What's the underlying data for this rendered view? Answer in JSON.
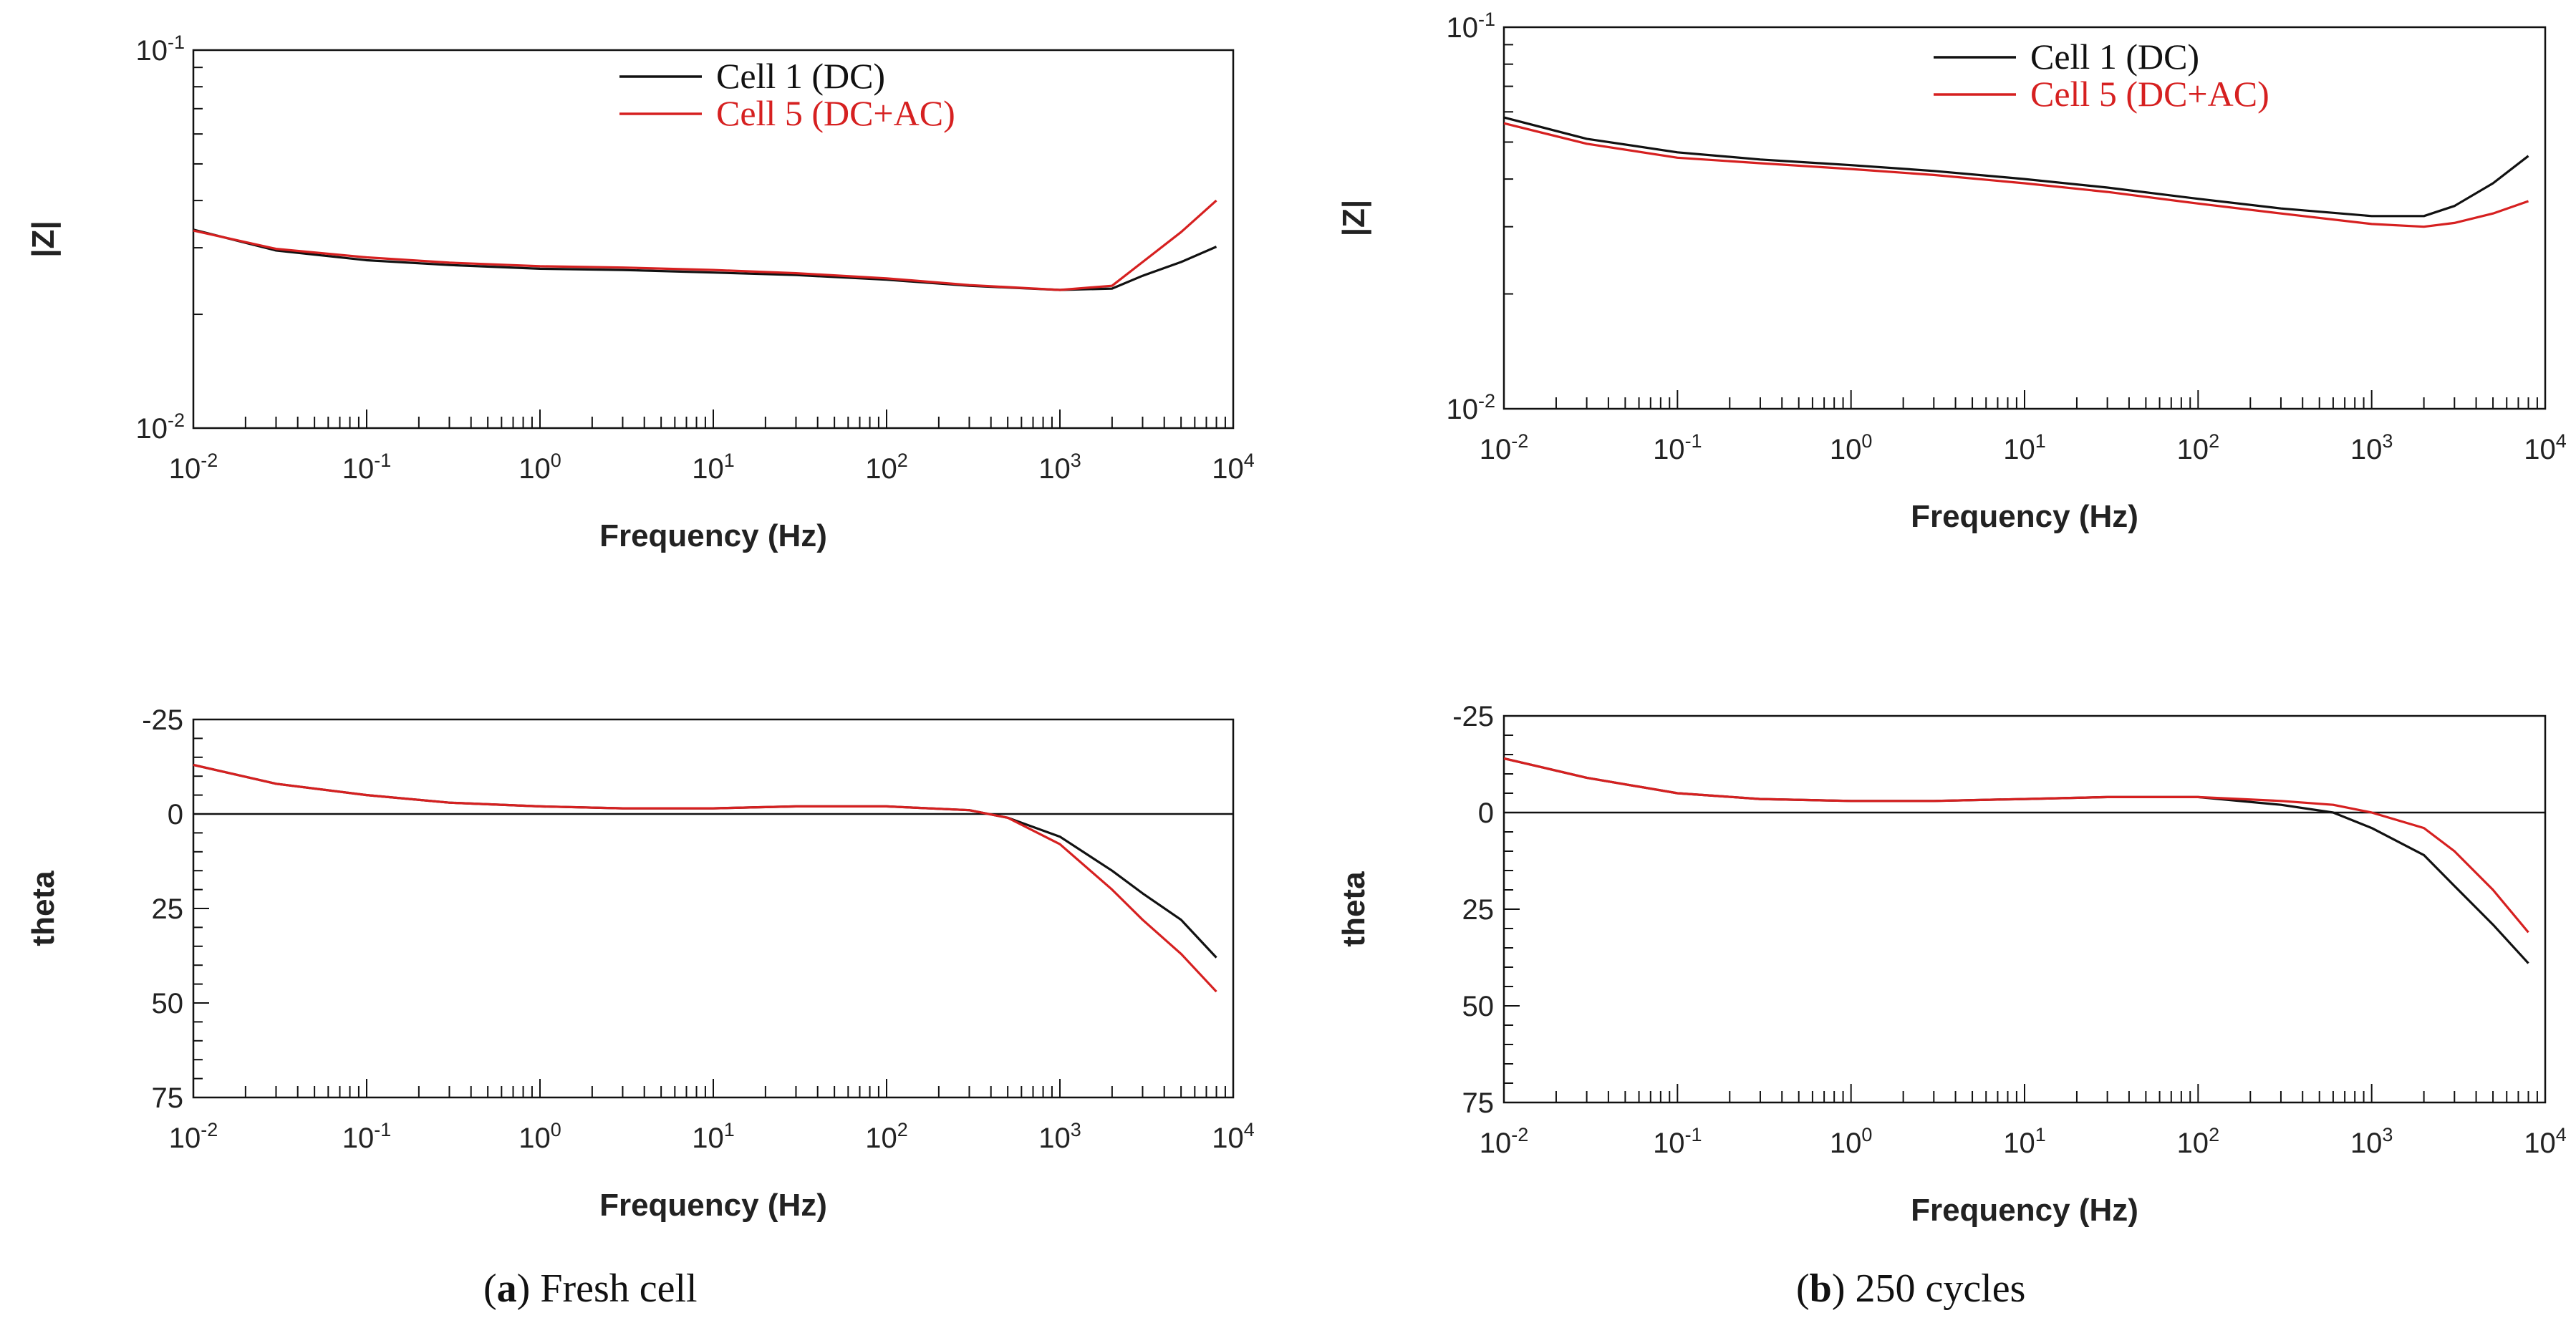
{
  "captions": [
    {
      "letter": "a",
      "text": " Fresh cell"
    },
    {
      "letter": "b",
      "text": " 250 cycles"
    }
  ],
  "colors": {
    "dc": "#111111",
    "dcac": "#d62020",
    "axis": "#111111"
  },
  "chart_data": [
    {
      "id": "a-mag",
      "type": "line",
      "xscale": "log",
      "yscale": "log",
      "xlabel": "Frequency (Hz)",
      "ylabel": "|Z|",
      "xlim": [
        0.01,
        10000
      ],
      "ylim": [
        0.01,
        0.1
      ],
      "xticks": [
        {
          "base": "10",
          "exp": "-2"
        },
        {
          "base": "10",
          "exp": "-1"
        },
        {
          "base": "10",
          "exp": "0"
        },
        {
          "base": "10",
          "exp": "1"
        },
        {
          "base": "10",
          "exp": "2"
        },
        {
          "base": "10",
          "exp": "3"
        },
        {
          "base": "10",
          "exp": "4"
        }
      ],
      "yticks": [
        {
          "base": "10",
          "exp": "-2",
          "value": 0.01
        },
        {
          "base": "10",
          "exp": "-1",
          "value": 0.1
        }
      ],
      "legend": {
        "position": "top-center",
        "entries": [
          "Cell 1 (DC)",
          "Cell 5 (DC+AC)"
        ]
      },
      "x": [
        0.01,
        0.03,
        0.1,
        0.3,
        1,
        3,
        10,
        30,
        100,
        300,
        1000,
        2000,
        3000,
        5000,
        8000
      ],
      "series": [
        {
          "name": "Cell 1 (DC)",
          "values": [
            0.0335,
            0.0295,
            0.0278,
            0.027,
            0.0264,
            0.0262,
            0.0258,
            0.0254,
            0.0247,
            0.0238,
            0.0232,
            0.0234,
            0.0253,
            0.0275,
            0.0302
          ]
        },
        {
          "name": "Cell 5 (DC+AC)",
          "values": [
            0.0333,
            0.0298,
            0.0283,
            0.0274,
            0.0268,
            0.0266,
            0.0262,
            0.0257,
            0.0249,
            0.0239,
            0.0232,
            0.0238,
            0.0275,
            0.033,
            0.04
          ]
        }
      ]
    },
    {
      "id": "a-phase",
      "type": "line",
      "xscale": "log",
      "yscale": "linear-inverted",
      "xlabel": "Frequency (Hz)",
      "ylabel": "theta",
      "xlim": [
        0.01,
        10000
      ],
      "ylim": [
        -25,
        75
      ],
      "xticks": [
        {
          "base": "10",
          "exp": "-2"
        },
        {
          "base": "10",
          "exp": "-1"
        },
        {
          "base": "10",
          "exp": "0"
        },
        {
          "base": "10",
          "exp": "1"
        },
        {
          "base": "10",
          "exp": "2"
        },
        {
          "base": "10",
          "exp": "3"
        },
        {
          "base": "10",
          "exp": "4"
        }
      ],
      "yticks": [
        {
          "label": "-25",
          "value": -25
        },
        {
          "label": "0",
          "value": 0
        },
        {
          "label": "25",
          "value": 25
        },
        {
          "label": "50",
          "value": 50
        },
        {
          "label": "75",
          "value": 75
        }
      ],
      "x": [
        0.01,
        0.03,
        0.1,
        0.3,
        1,
        3,
        10,
        30,
        100,
        300,
        500,
        1000,
        2000,
        3000,
        5000,
        8000
      ],
      "series": [
        {
          "name": "Cell 1 (DC)",
          "values": [
            -13,
            -8,
            -5,
            -3,
            -2,
            -1.5,
            -1.5,
            -2,
            -2,
            -1,
            1,
            6,
            15,
            21,
            28,
            38
          ]
        },
        {
          "name": "Cell 5 (DC+AC)",
          "values": [
            -13,
            -8,
            -5,
            -3,
            -2,
            -1.5,
            -1.5,
            -2,
            -2,
            -1,
            1,
            8,
            20,
            28,
            37,
            47
          ]
        }
      ]
    },
    {
      "id": "b-mag",
      "type": "line",
      "xscale": "log",
      "yscale": "log",
      "xlabel": "Frequency (Hz)",
      "ylabel": "|Z|",
      "xlim": [
        0.01,
        10000
      ],
      "ylim": [
        0.01,
        0.1
      ],
      "xticks": [
        {
          "base": "10",
          "exp": "-2"
        },
        {
          "base": "10",
          "exp": "-1"
        },
        {
          "base": "10",
          "exp": "0"
        },
        {
          "base": "10",
          "exp": "1"
        },
        {
          "base": "10",
          "exp": "2"
        },
        {
          "base": "10",
          "exp": "3"
        },
        {
          "base": "10",
          "exp": "4"
        }
      ],
      "yticks": [
        {
          "base": "10",
          "exp": "-2",
          "value": 0.01
        },
        {
          "base": "10",
          "exp": "-1",
          "value": 0.1
        }
      ],
      "legend": {
        "position": "top-center",
        "entries": [
          "Cell 1 (DC)",
          "Cell 5 (DC+AC)"
        ]
      },
      "x": [
        0.01,
        0.03,
        0.1,
        0.3,
        1,
        3,
        10,
        30,
        100,
        300,
        1000,
        2000,
        3000,
        5000,
        8000
      ],
      "series": [
        {
          "name": "Cell 1 (DC)",
          "values": [
            0.058,
            0.051,
            0.047,
            0.045,
            0.0435,
            0.042,
            0.04,
            0.038,
            0.0355,
            0.0335,
            0.032,
            0.032,
            0.034,
            0.039,
            0.046
          ]
        },
        {
          "name": "Cell 5 (DC+AC)",
          "values": [
            0.056,
            0.0495,
            0.0455,
            0.044,
            0.0425,
            0.041,
            0.039,
            0.037,
            0.0345,
            0.0325,
            0.0305,
            0.03,
            0.0307,
            0.0325,
            0.035
          ]
        }
      ]
    },
    {
      "id": "b-phase",
      "type": "line",
      "xscale": "log",
      "yscale": "linear-inverted",
      "xlabel": "Frequency (Hz)",
      "ylabel": "theta",
      "xlim": [
        0.01,
        10000
      ],
      "ylim": [
        -25,
        75
      ],
      "xticks": [
        {
          "base": "10",
          "exp": "-2"
        },
        {
          "base": "10",
          "exp": "-1"
        },
        {
          "base": "10",
          "exp": "0"
        },
        {
          "base": "10",
          "exp": "1"
        },
        {
          "base": "10",
          "exp": "2"
        },
        {
          "base": "10",
          "exp": "3"
        },
        {
          "base": "10",
          "exp": "4"
        }
      ],
      "yticks": [
        {
          "label": "-25",
          "value": -25
        },
        {
          "label": "0",
          "value": 0
        },
        {
          "label": "25",
          "value": 25
        },
        {
          "label": "50",
          "value": 50
        },
        {
          "label": "75",
          "value": 75
        }
      ],
      "x": [
        0.01,
        0.03,
        0.1,
        0.3,
        1,
        3,
        10,
        30,
        100,
        300,
        600,
        1000,
        2000,
        3000,
        5000,
        8000
      ],
      "series": [
        {
          "name": "Cell 1 (DC)",
          "values": [
            -14,
            -9,
            -5,
            -3.5,
            -3,
            -3,
            -3.5,
            -4,
            -4,
            -2,
            0,
            4,
            11,
            19,
            29,
            39
          ]
        },
        {
          "name": "Cell 5 (DC+AC)",
          "values": [
            -14,
            -9,
            -5,
            -3.5,
            -3,
            -3,
            -3.5,
            -4,
            -4,
            -3,
            -2,
            0,
            4,
            10,
            20,
            31
          ]
        }
      ]
    }
  ]
}
